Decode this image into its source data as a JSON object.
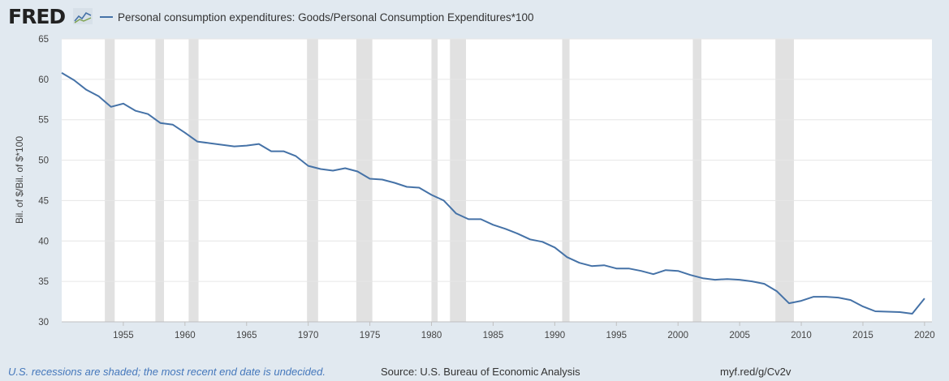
{
  "header": {
    "logo_text": "FRED",
    "logo_icon": "trend-line-icon"
  },
  "legend": {
    "label": "Personal consumption expenditures: Goods/Personal Consumption Expenditures*100"
  },
  "footer": {
    "note": "U.S. recessions are shaded; the most recent end date is undecided.",
    "source": "Source: U.S. Bureau of Economic Analysis",
    "url": "myf.red/g/Cv2v"
  },
  "colors": {
    "line": "#4572a7",
    "recession": "#e1e1e1",
    "plot_background": "#ffffff",
    "page_background": "#e1e9f0",
    "grid": "#e6e6e6"
  },
  "chart_data": {
    "type": "line",
    "title": "",
    "xlabel": "",
    "ylabel": "Bil. of $/Bil. of $*100",
    "xlim": [
      1950,
      2020.6
    ],
    "ylim": [
      30,
      65
    ],
    "x_ticks": [
      1955,
      1960,
      1965,
      1970,
      1975,
      1980,
      1985,
      1990,
      1995,
      2000,
      2005,
      2010,
      2015,
      2020
    ],
    "y_ticks": [
      30,
      35,
      40,
      45,
      50,
      55,
      60,
      65
    ],
    "grid": "horizontal",
    "legend_position": "top-left",
    "recessions": [
      [
        1953.5,
        1954.3
      ],
      [
        1957.6,
        1958.3
      ],
      [
        1960.3,
        1961.1
      ],
      [
        1969.9,
        1970.8
      ],
      [
        1973.9,
        1975.2
      ],
      [
        1980.0,
        1980.5
      ],
      [
        1981.5,
        1982.8
      ],
      [
        1990.6,
        1991.2
      ],
      [
        2001.2,
        2001.9
      ],
      [
        2007.9,
        2009.4
      ]
    ],
    "series": [
      {
        "name": "Personal consumption expenditures: Goods/Personal Consumption Expenditures*100",
        "x": [
          1950,
          1951,
          1952,
          1953,
          1954,
          1955,
          1956,
          1957,
          1958,
          1959,
          1960,
          1961,
          1962,
          1963,
          1964,
          1965,
          1966,
          1967,
          1968,
          1969,
          1970,
          1971,
          1972,
          1973,
          1974,
          1975,
          1976,
          1977,
          1978,
          1979,
          1980,
          1981,
          1982,
          1983,
          1984,
          1985,
          1986,
          1987,
          1988,
          1989,
          1990,
          1991,
          1992,
          1993,
          1994,
          1995,
          1996,
          1997,
          1998,
          1999,
          2000,
          2001,
          2002,
          2003,
          2004,
          2005,
          2006,
          2007,
          2008,
          2009,
          2010,
          2011,
          2012,
          2013,
          2014,
          2015,
          2016,
          2017,
          2018,
          2019,
          2020
        ],
        "values": [
          60.8,
          59.9,
          58.7,
          57.9,
          56.6,
          57.0,
          56.1,
          55.7,
          54.6,
          54.4,
          53.4,
          52.3,
          52.1,
          51.9,
          51.7,
          51.8,
          52.0,
          51.1,
          51.1,
          50.5,
          49.3,
          48.9,
          48.7,
          49.0,
          48.6,
          47.7,
          47.6,
          47.2,
          46.7,
          46.6,
          45.7,
          45.0,
          43.4,
          42.7,
          42.7,
          42.0,
          41.5,
          40.9,
          40.2,
          39.9,
          39.2,
          38.0,
          37.3,
          36.9,
          37.0,
          36.6,
          36.6,
          36.3,
          35.9,
          36.4,
          36.3,
          35.8,
          35.4,
          35.2,
          35.3,
          35.2,
          35.0,
          34.7,
          33.8,
          32.3,
          32.6,
          33.1,
          33.1,
          33.0,
          32.7,
          31.9,
          31.3,
          31.25,
          31.2,
          31.0,
          32.9
        ]
      }
    ]
  }
}
